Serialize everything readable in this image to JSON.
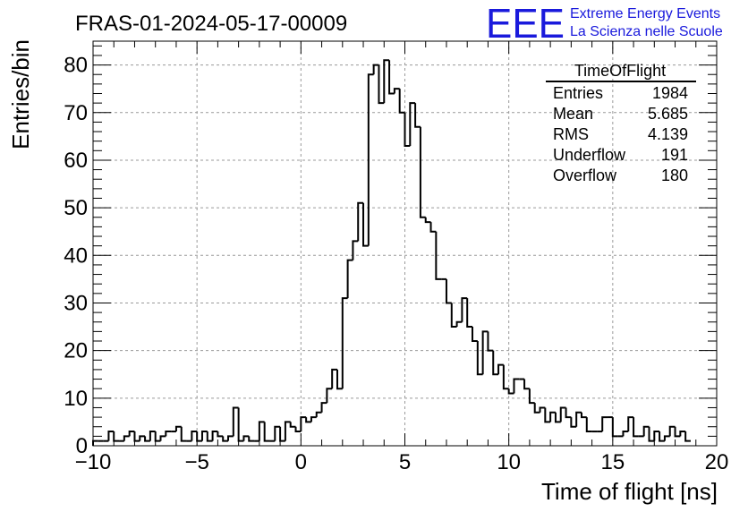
{
  "header": {
    "run_title": "FRAS-01-2024-05-17-00009",
    "logo_text": "EEE",
    "logo_line1": "Extreme Energy Events",
    "logo_line2": "La Scienza nelle Scuole",
    "logo_color": "#1a1adc"
  },
  "stats_box": {
    "title": "TimeOfFlight",
    "rows": [
      {
        "label": "Entries",
        "value": "1984"
      },
      {
        "label": "Mean",
        "value": "5.685"
      },
      {
        "label": "RMS",
        "value": "4.139"
      },
      {
        "label": "Underflow",
        "value": "191"
      },
      {
        "label": "Overflow",
        "value": "180"
      }
    ]
  },
  "chart_data": {
    "type": "histogram",
    "title": "FRAS-01-2024-05-17-00009",
    "xlabel": "Time of flight [ns]",
    "ylabel": "Entries/bin",
    "xlim": [
      -10,
      20
    ],
    "ylim": [
      0,
      85
    ],
    "grid": true,
    "line_color": "#000000",
    "bin_width": 0.25,
    "x_ticks": [
      "−10",
      "−5",
      "0",
      "5",
      "10",
      "15",
      "20"
    ],
    "x_tick_values": [
      -10,
      -5,
      0,
      5,
      10,
      15,
      20
    ],
    "y_ticks": [
      "0",
      "10",
      "20",
      "30",
      "40",
      "50",
      "60",
      "70",
      "80"
    ],
    "y_tick_values": [
      0,
      10,
      20,
      30,
      40,
      50,
      60,
      70,
      80
    ],
    "bin_start": -10,
    "values": [
      1,
      1,
      1,
      3,
      1,
      1,
      2,
      3,
      1,
      2,
      1,
      3,
      1,
      2,
      3,
      3,
      4,
      1,
      1,
      3,
      1,
      3,
      1,
      3,
      2,
      1,
      2,
      8,
      1,
      2,
      1,
      1,
      5,
      1,
      1,
      4,
      1,
      5,
      4,
      3,
      6,
      5,
      6,
      7,
      9,
      12,
      16,
      12,
      31,
      39,
      43,
      51,
      42,
      78,
      80,
      72,
      81,
      74,
      75,
      70,
      63,
      72,
      67,
      48,
      47,
      45,
      35,
      35,
      30,
      25,
      26,
      31,
      25,
      22,
      15,
      24,
      20,
      15,
      17,
      12,
      11,
      14,
      14,
      12,
      9,
      7,
      8,
      5,
      7,
      5,
      8,
      6,
      4,
      7,
      6,
      3,
      3,
      3,
      6,
      6,
      2,
      2,
      3,
      6,
      2,
      2,
      4,
      1,
      3,
      1,
      2,
      4,
      2,
      3,
      1
    ]
  }
}
